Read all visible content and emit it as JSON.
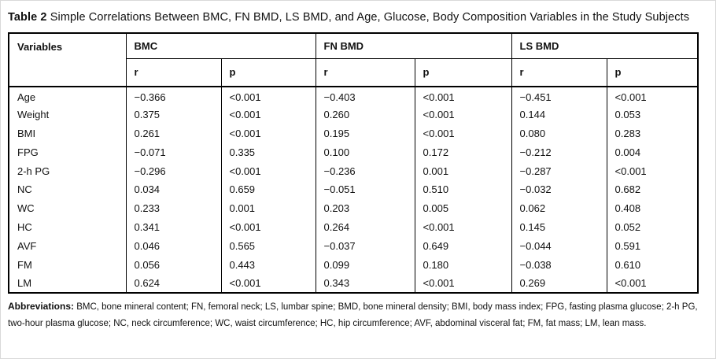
{
  "title": {
    "label": "Table 2",
    "text": "Simple Correlations Between BMC, FN BMD, LS BMD, and Age, Glucose, Body Composition Variables in the Study Subjects"
  },
  "table": {
    "variables_header": "Variables",
    "groups": [
      {
        "label": "BMC"
      },
      {
        "label": "FN BMD"
      },
      {
        "label": "LS BMD"
      }
    ],
    "subheaders": [
      "r",
      "p"
    ],
    "rows": [
      {
        "variable": "Age",
        "values": [
          "−0.366",
          "<0.001",
          "−0.403",
          "<0.001",
          "−0.451",
          "<0.001"
        ]
      },
      {
        "variable": "Weight",
        "values": [
          "0.375",
          "<0.001",
          "0.260",
          "<0.001",
          "0.144",
          "0.053"
        ]
      },
      {
        "variable": "BMI",
        "values": [
          "0.261",
          "<0.001",
          "0.195",
          "<0.001",
          "0.080",
          "0.283"
        ]
      },
      {
        "variable": "FPG",
        "values": [
          "−0.071",
          "0.335",
          "0.100",
          "0.172",
          "−0.212",
          "0.004"
        ]
      },
      {
        "variable": "2-h PG",
        "values": [
          "−0.296",
          "<0.001",
          "−0.236",
          "0.001",
          "−0.287",
          "<0.001"
        ]
      },
      {
        "variable": "NC",
        "values": [
          "0.034",
          "0.659",
          "−0.051",
          "0.510",
          "−0.032",
          "0.682"
        ]
      },
      {
        "variable": "WC",
        "values": [
          "0.233",
          "0.001",
          "0.203",
          "0.005",
          "0.062",
          "0.408"
        ]
      },
      {
        "variable": "HC",
        "values": [
          "0.341",
          "<0.001",
          "0.264",
          "<0.001",
          "0.145",
          "0.052"
        ]
      },
      {
        "variable": "AVF",
        "values": [
          "0.046",
          "0.565",
          "−0.037",
          "0.649",
          "−0.044",
          "0.591"
        ]
      },
      {
        "variable": "FM",
        "values": [
          "0.056",
          "0.443",
          "0.099",
          "0.180",
          "−0.038",
          "0.610"
        ]
      },
      {
        "variable": "LM",
        "values": [
          "0.624",
          "<0.001",
          "0.343",
          "<0.001",
          "0.269",
          "<0.001"
        ]
      }
    ]
  },
  "footnote": {
    "label": "Abbreviations:",
    "text": "BMC, bone mineral content; FN, femoral neck; LS, lumbar spine; BMD, bone mineral density; BMI, body mass index; FPG, fasting plasma glucose; 2-h PG, two-hour plasma glucose; NC, neck circumference; WC, waist circumference; HC, hip circumference; AVF, abdominal visceral fat; FM, fat mass; LM, lean mass."
  },
  "colors": {
    "text": "#111111",
    "border": "#000000",
    "background": "#ffffff"
  }
}
